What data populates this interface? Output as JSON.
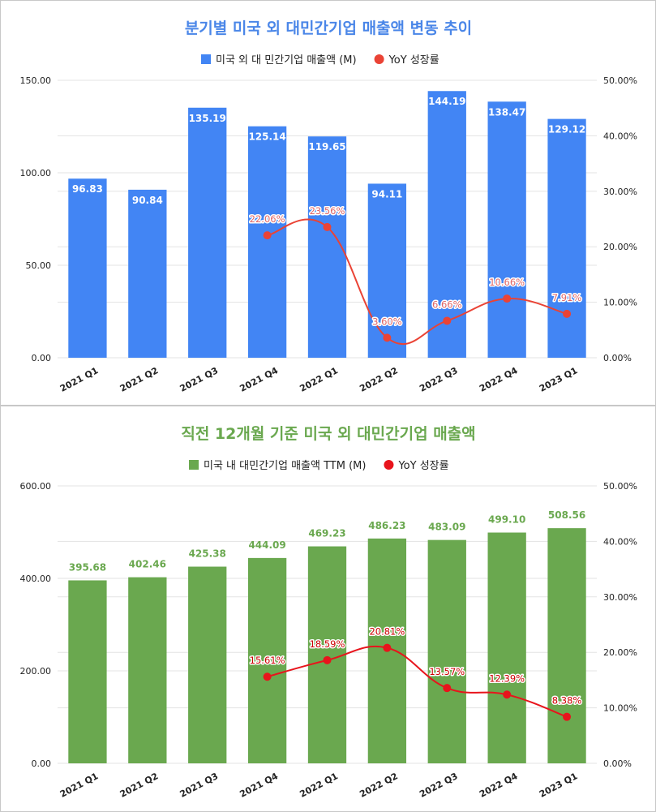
{
  "chart_data": [
    {
      "type": "bar",
      "title": "분기별 미국 외 대민간기업 매출액 변동 추이",
      "categories": [
        "2021 Q1",
        "2021 Q2",
        "2021 Q3",
        "2021 Q4",
        "2022 Q1",
        "2022 Q2",
        "2022 Q3",
        "2022 Q4",
        "2023 Q1"
      ],
      "series": [
        {
          "name": "미국 외 대 민간기업 매출액 (M)",
          "kind": "bar",
          "axis": "left",
          "color": "#4285f4",
          "values": [
            96.83,
            90.84,
            135.19,
            125.14,
            119.65,
            94.11,
            144.19,
            138.47,
            129.12
          ],
          "labels": [
            "96.83",
            "90.84",
            "135.19",
            "125.14",
            "119.65",
            "94.11",
            "144.19",
            "138.47",
            "129.12"
          ]
        },
        {
          "name": "YoY 성장률",
          "kind": "line",
          "axis": "right",
          "color": "#ea4335",
          "values": [
            null,
            null,
            null,
            22.06,
            23.56,
            3.6,
            6.66,
            10.66,
            7.91
          ],
          "labels": [
            "",
            "",
            "",
            "22.06%",
            "23.56%",
            "3.60%",
            "6.66%",
            "10.66%",
            "7.91%"
          ]
        }
      ],
      "ylim": [
        0,
        150
      ],
      "y_ticks": [
        "0.00",
        "50.00",
        "100.00",
        "150.00"
      ],
      "y2lim": [
        0,
        50
      ],
      "y2_ticks": [
        "0.00%",
        "10.00%",
        "20.00%",
        "30.00%",
        "40.00%",
        "50.00%"
      ],
      "title_color": "#4a86e8",
      "bar_label_inside": true,
      "bar_label_color": "#ffffff",
      "line_label_color": "#e06666",
      "legend": "top"
    },
    {
      "type": "bar",
      "title": "직전 12개월 기준 미국 외 대민간기업 매출액",
      "categories": [
        "2021 Q1",
        "2021 Q2",
        "2021 Q3",
        "2021 Q4",
        "2022 Q1",
        "2022 Q2",
        "2022 Q3",
        "2022 Q4",
        "2023 Q1"
      ],
      "series": [
        {
          "name": "미국 내 대민간기업 매출액 TTM (M)",
          "kind": "bar",
          "axis": "left",
          "color": "#6aa84f",
          "values": [
            395.68,
            402.46,
            425.38,
            444.09,
            469.23,
            486.23,
            483.09,
            499.1,
            508.56
          ],
          "labels": [
            "395.68",
            "402.46",
            "425.38",
            "444.09",
            "469.23",
            "486.23",
            "483.09",
            "499.10",
            "508.56"
          ]
        },
        {
          "name": "YoY 성장률",
          "kind": "line",
          "axis": "right",
          "color": "#e8141c",
          "values": [
            null,
            null,
            null,
            15.61,
            18.59,
            20.81,
            13.57,
            12.39,
            8.38
          ],
          "labels": [
            "",
            "",
            "",
            "15.61%",
            "18.59%",
            "20.81%",
            "13.57%",
            "12.39%",
            "8.38%"
          ]
        }
      ],
      "ylim": [
        0,
        600
      ],
      "y_ticks": [
        "0.00",
        "200.00",
        "400.00",
        "600.00"
      ],
      "y2lim": [
        0,
        50
      ],
      "y2_ticks": [
        "0.00%",
        "10.00%",
        "20.00%",
        "30.00%",
        "40.00%",
        "50.00%"
      ],
      "title_color": "#6aa84f",
      "bar_label_inside": false,
      "bar_label_color": "#6aa84f",
      "line_label_color": "#cc0000",
      "legend": "top"
    }
  ]
}
